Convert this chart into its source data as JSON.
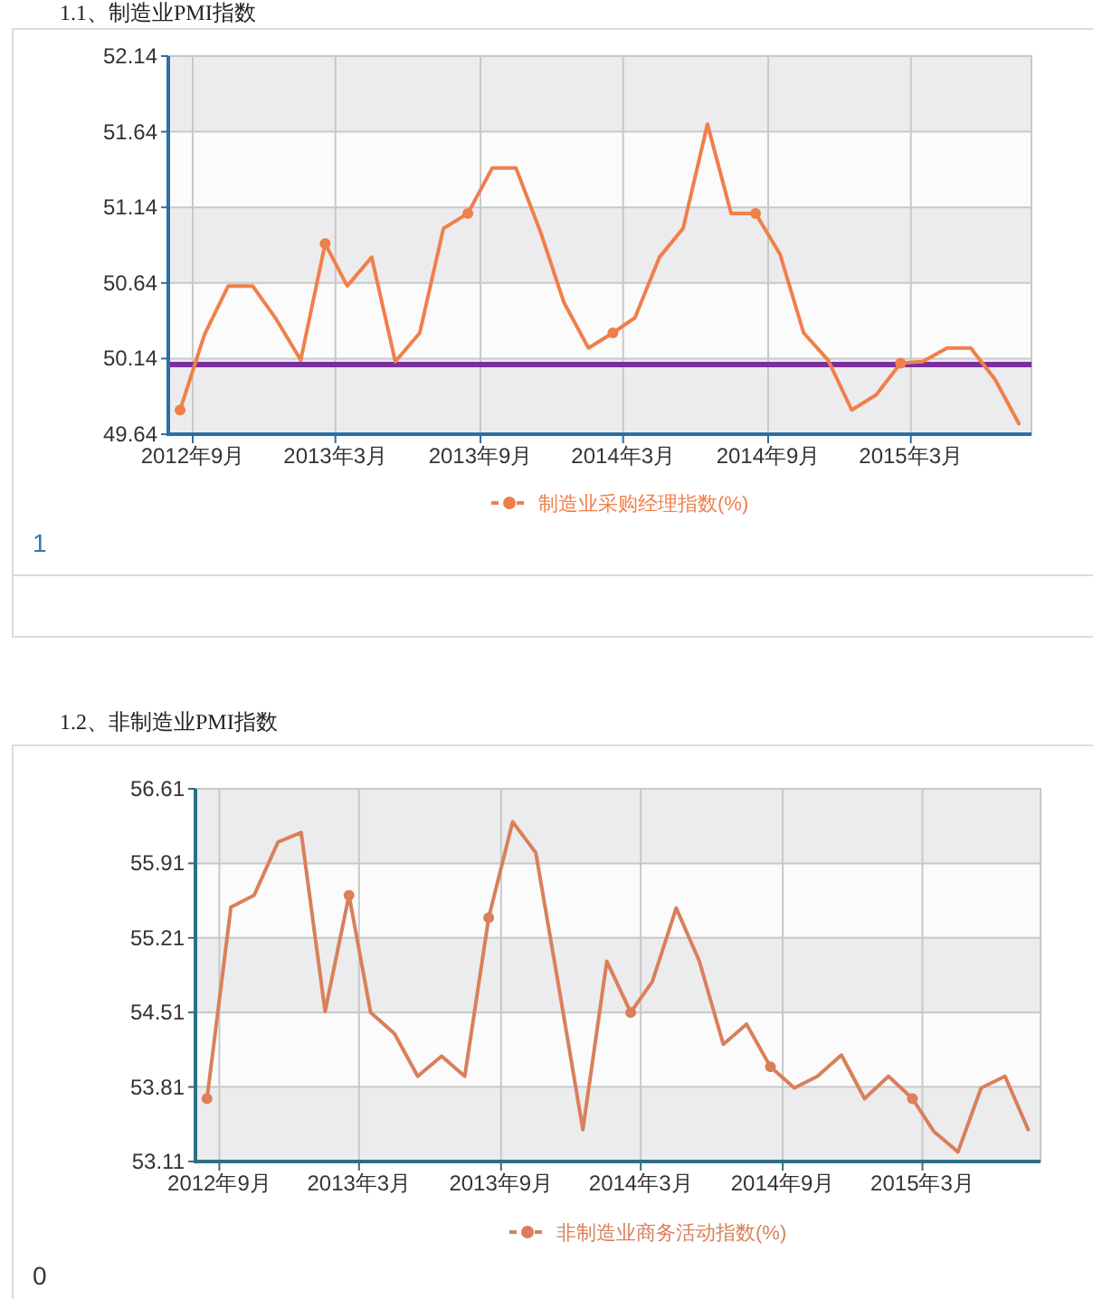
{
  "chart_data": [
    {
      "type": "line",
      "title": "1.1、制造业PMI指数",
      "x": [
        "2012-08-16",
        "2012-09-16",
        "2012-10-16",
        "2012-11-16",
        "2012-12-16",
        "2013-01-16",
        "2013-02-16",
        "2013-03-16",
        "2013-04-16",
        "2013-05-16",
        "2013-06-16",
        "2013-07-16",
        "2013-08-16",
        "2013-09-16",
        "2013-10-16",
        "2013-11-16",
        "2013-12-16",
        "2014-01-16",
        "2014-02-16",
        "2014-03-16",
        "2014-04-16",
        "2014-05-16",
        "2014-06-16",
        "2014-07-16",
        "2014-08-16",
        "2014-09-16",
        "2014-10-16",
        "2014-11-16",
        "2014-12-16",
        "2015-01-16",
        "2015-02-16",
        "2015-03-16",
        "2015-04-16",
        "2015-05-16",
        "2015-06-16",
        "2015-07-16"
      ],
      "series": [
        {
          "name": "制造业采购经理指数(%)",
          "color": "#f07f4a",
          "values": [
            49.8,
            50.3,
            50.62,
            50.62,
            50.4,
            50.13,
            50.9,
            50.62,
            50.81,
            50.12,
            50.31,
            51.0,
            51.1,
            51.4,
            51.4,
            50.98,
            50.51,
            50.21,
            50.31,
            50.41,
            50.81,
            51.0,
            51.69,
            51.1,
            51.1,
            50.83,
            50.31,
            50.13,
            49.8,
            49.9,
            50.11,
            50.12,
            50.21,
            50.21,
            50.0,
            49.71
          ]
        }
      ],
      "xlim": [
        "2012-08-01",
        "2015-08-01"
      ],
      "xticks": [
        {
          "value": "2012-09-01",
          "label": "2012年9月"
        },
        {
          "value": "2013-03-01",
          "label": "2013年3月"
        },
        {
          "value": "2013-09-01",
          "label": "2013年9月"
        },
        {
          "value": "2014-03-01",
          "label": "2014年3月"
        },
        {
          "value": "2014-09-01",
          "label": "2014年9月"
        },
        {
          "value": "2015-03-01",
          "label": "2015年3月"
        }
      ],
      "ylim": [
        49.64,
        52.14
      ],
      "yticks": [
        49.64,
        50.14,
        50.64,
        51.14,
        51.64,
        52.14
      ],
      "ref_lines": [
        {
          "axis": "y",
          "value": 50.1,
          "color": "#7b2f9e"
        }
      ],
      "grid": true,
      "legend": "bottom",
      "line_style": "solid",
      "annotations": [
        "1"
      ]
    },
    {
      "type": "line",
      "title": "1.2、非制造业PMI指数",
      "x": [
        "2012-08-16",
        "2012-09-16",
        "2012-10-16",
        "2012-11-16",
        "2012-12-16",
        "2013-01-16",
        "2013-02-16",
        "2013-03-16",
        "2013-04-16",
        "2013-05-16",
        "2013-06-16",
        "2013-07-16",
        "2013-08-16",
        "2013-09-16",
        "2013-10-16",
        "2013-11-16",
        "2013-12-16",
        "2014-01-16",
        "2014-02-16",
        "2014-03-16",
        "2014-04-16",
        "2014-05-16",
        "2014-06-16",
        "2014-07-16",
        "2014-08-16",
        "2014-09-16",
        "2014-10-16",
        "2014-11-16",
        "2014-12-16",
        "2015-01-16",
        "2015-02-16",
        "2015-03-16",
        "2015-04-16",
        "2015-05-16",
        "2015-06-16",
        "2015-07-16"
      ],
      "series": [
        {
          "name": "非制造业商务活动指数(%)",
          "color": "#d9805a",
          "values": [
            53.7,
            55.5,
            55.61,
            56.11,
            56.2,
            54.52,
            55.61,
            54.51,
            54.31,
            53.91,
            54.1,
            53.91,
            55.4,
            56.3,
            56.01,
            54.7,
            53.41,
            54.99,
            54.51,
            54.8,
            55.49,
            54.99,
            54.21,
            54.4,
            54.0,
            53.8,
            53.91,
            54.11,
            53.7,
            53.91,
            53.7,
            53.39,
            53.2,
            53.8,
            53.91,
            53.41
          ]
        }
      ],
      "xlim": [
        "2012-08-01",
        "2015-08-01"
      ],
      "xticks": [
        {
          "value": "2012-09-01",
          "label": "2012年9月"
        },
        {
          "value": "2013-03-01",
          "label": "2013年3月"
        },
        {
          "value": "2013-09-01",
          "label": "2013年9月"
        },
        {
          "value": "2014-03-01",
          "label": "2014年3月"
        },
        {
          "value": "2014-09-01",
          "label": "2014年9月"
        },
        {
          "value": "2015-03-01",
          "label": "2015年3月"
        }
      ],
      "ylim": [
        53.11,
        56.61
      ],
      "yticks": [
        53.11,
        53.81,
        54.51,
        55.21,
        55.91,
        56.61
      ],
      "grid": true,
      "legend": "bottom",
      "line_style": "solid",
      "annotations": [
        "0"
      ]
    }
  ]
}
